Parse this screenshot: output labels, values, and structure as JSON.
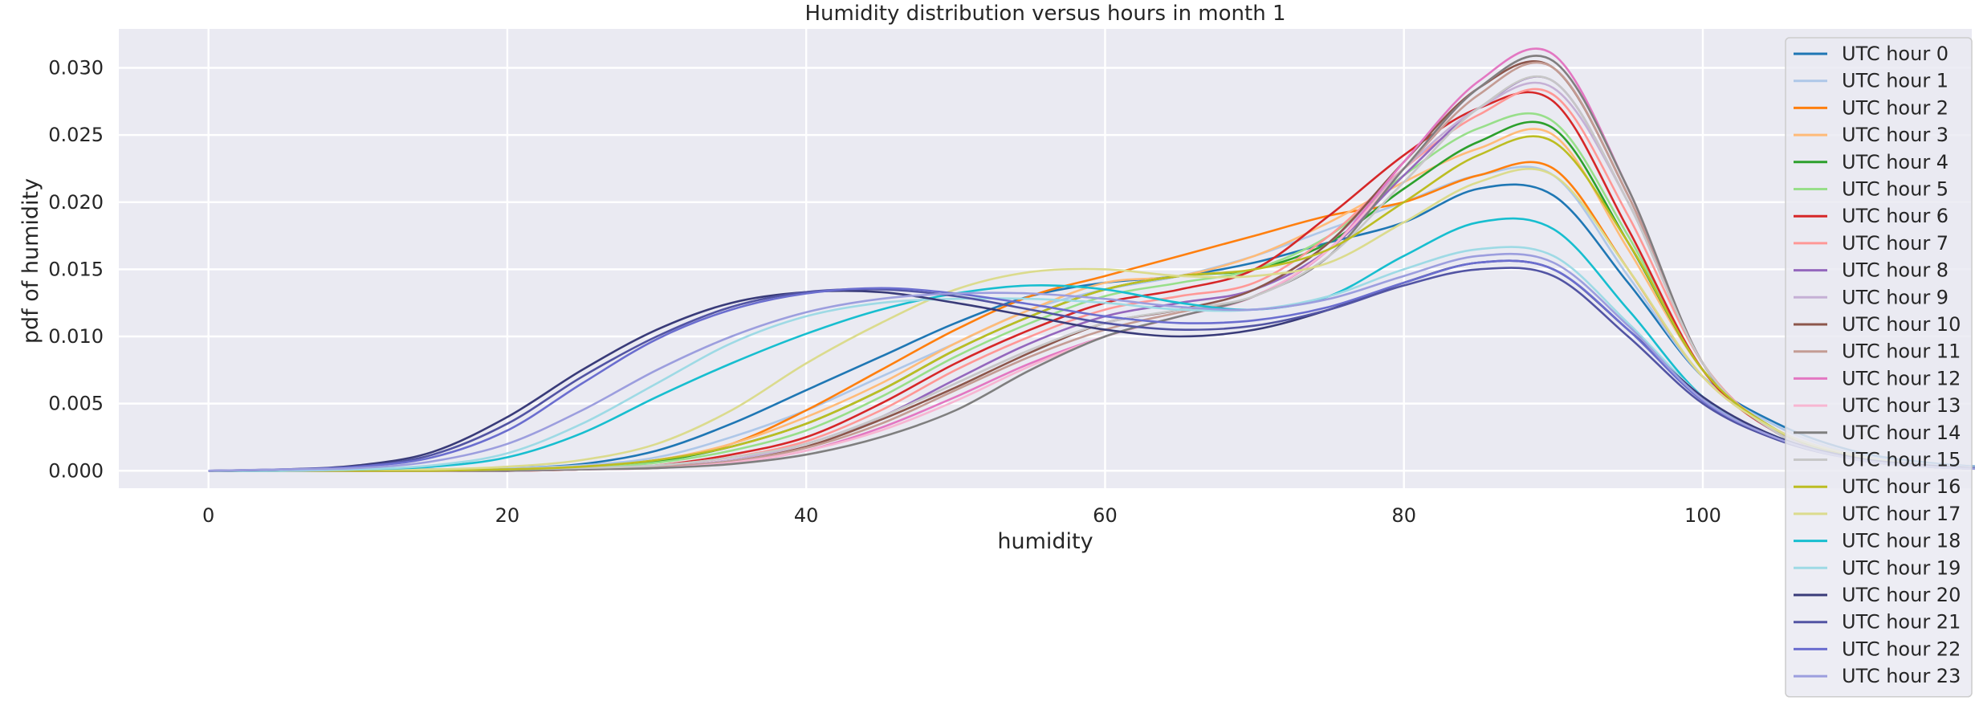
{
  "chart_data": {
    "type": "line",
    "title": "Humidity distribution versus hours in month 1",
    "xlabel": "humidity",
    "ylabel": "pdf of humidity",
    "xlim": [
      -6,
      118
    ],
    "ylim": [
      -0.0013,
      0.0329
    ],
    "x_ticks": [
      0,
      20,
      40,
      60,
      80,
      100
    ],
    "y_ticks": [
      0.0,
      0.005,
      0.01,
      0.015,
      0.02,
      0.025,
      0.03
    ],
    "x_tick_labels": [
      "0",
      "20",
      "40",
      "60",
      "80",
      "100"
    ],
    "y_tick_labels": [
      "0.000",
      "0.005",
      "0.010",
      "0.015",
      "0.020",
      "0.025",
      "0.030"
    ],
    "grid": true,
    "legend_position": "right",
    "background_color": "#eaeaf2",
    "x": [
      0,
      5,
      10,
      15,
      20,
      25,
      30,
      35,
      40,
      45,
      50,
      55,
      60,
      65,
      70,
      75,
      80,
      85,
      90,
      95,
      100,
      105,
      110,
      115,
      120
    ],
    "series": [
      {
        "name": "UTC hour 0",
        "color": "#1f77b4",
        "values": [
          0,
          0,
          0.0001,
          0.0001,
          0.0002,
          0.0005,
          0.0015,
          0.0035,
          0.006,
          0.0085,
          0.011,
          0.013,
          0.014,
          0.0145,
          0.0155,
          0.017,
          0.0185,
          0.021,
          0.0205,
          0.014,
          0.007,
          0.0035,
          0.0015,
          0.0006,
          0.0002
        ]
      },
      {
        "name": "UTC hour 1",
        "color": "#aec7e8",
        "values": [
          0,
          0,
          0,
          0.0001,
          0.0002,
          0.0004,
          0.001,
          0.0025,
          0.0045,
          0.007,
          0.0095,
          0.012,
          0.0135,
          0.0145,
          0.016,
          0.018,
          0.02,
          0.022,
          0.022,
          0.0145,
          0.007,
          0.0033,
          0.0013,
          0.0005,
          0.0002
        ]
      },
      {
        "name": "UTC hour 2",
        "color": "#ff7f0e",
        "values": [
          0,
          0,
          0,
          0,
          0.0001,
          0.0003,
          0.0008,
          0.002,
          0.0045,
          0.0075,
          0.0105,
          0.013,
          0.0145,
          0.016,
          0.0175,
          0.019,
          0.02,
          0.022,
          0.0225,
          0.015,
          0.007,
          0.003,
          0.0012,
          0.0004,
          0.0001
        ]
      },
      {
        "name": "UTC hour 3",
        "color": "#ffbb78",
        "values": [
          0,
          0,
          0,
          0,
          0.0001,
          0.0003,
          0.0008,
          0.002,
          0.004,
          0.0065,
          0.0095,
          0.012,
          0.014,
          0.0145,
          0.016,
          0.0185,
          0.0215,
          0.024,
          0.025,
          0.0165,
          0.0075,
          0.003,
          0.0011,
          0.0004,
          0.0001
        ]
      },
      {
        "name": "UTC hour 4",
        "color": "#2ca02c",
        "values": [
          0,
          0,
          0,
          0,
          0.0001,
          0.0002,
          0.0007,
          0.0018,
          0.0035,
          0.006,
          0.009,
          0.0115,
          0.0135,
          0.0145,
          0.015,
          0.017,
          0.021,
          0.0245,
          0.0255,
          0.017,
          0.0075,
          0.003,
          0.0011,
          0.0004,
          0.0001
        ]
      },
      {
        "name": "UTC hour 5",
        "color": "#98df8a",
        "values": [
          0,
          0,
          0,
          0,
          0.0001,
          0.0002,
          0.0006,
          0.0015,
          0.003,
          0.0055,
          0.0085,
          0.011,
          0.013,
          0.014,
          0.015,
          0.0175,
          0.022,
          0.0255,
          0.026,
          0.0175,
          0.0075,
          0.003,
          0.001,
          0.0003,
          0.0001
        ]
      },
      {
        "name": "UTC hour 6",
        "color": "#d62728",
        "values": [
          0,
          0,
          0,
          0,
          0,
          0.0001,
          0.0004,
          0.0012,
          0.0025,
          0.005,
          0.008,
          0.0105,
          0.0125,
          0.0135,
          0.015,
          0.019,
          0.0235,
          0.027,
          0.0275,
          0.018,
          0.0075,
          0.0028,
          0.0009,
          0.0003,
          0.0001
        ]
      },
      {
        "name": "UTC hour 7",
        "color": "#ff9896",
        "values": [
          0,
          0,
          0,
          0,
          0,
          0.0001,
          0.0004,
          0.001,
          0.0022,
          0.0045,
          0.0075,
          0.01,
          0.012,
          0.013,
          0.014,
          0.0175,
          0.0225,
          0.0265,
          0.028,
          0.019,
          0.008,
          0.0028,
          0.0009,
          0.0003,
          0.0001
        ]
      },
      {
        "name": "UTC hour 8",
        "color": "#9467bd",
        "values": [
          0,
          0,
          0,
          0,
          0,
          0.0001,
          0.0003,
          0.0008,
          0.002,
          0.004,
          0.0068,
          0.0095,
          0.0115,
          0.0125,
          0.0135,
          0.0165,
          0.022,
          0.027,
          0.029,
          0.02,
          0.008,
          0.0028,
          0.0009,
          0.0003,
          0.0001
        ]
      },
      {
        "name": "UTC hour 9",
        "color": "#c5b0d5",
        "values": [
          0,
          0,
          0,
          0,
          0,
          0.0001,
          0.0003,
          0.0008,
          0.002,
          0.004,
          0.0065,
          0.009,
          0.011,
          0.012,
          0.0135,
          0.017,
          0.0225,
          0.027,
          0.0285,
          0.02,
          0.008,
          0.0028,
          0.0009,
          0.0003,
          0.0001
        ]
      },
      {
        "name": "UTC hour 10",
        "color": "#8c564b",
        "values": [
          0,
          0,
          0,
          0,
          0,
          0.0001,
          0.0003,
          0.0007,
          0.0018,
          0.0038,
          0.0062,
          0.0088,
          0.011,
          0.012,
          0.0135,
          0.017,
          0.023,
          0.0285,
          0.03,
          0.0205,
          0.008,
          0.0028,
          0.0009,
          0.0003,
          0.0001
        ]
      },
      {
        "name": "UTC hour 11",
        "color": "#c49c94",
        "values": [
          0,
          0,
          0,
          0,
          0,
          0.0001,
          0.0003,
          0.0007,
          0.0017,
          0.0035,
          0.006,
          0.0085,
          0.0105,
          0.0118,
          0.013,
          0.0165,
          0.0225,
          0.028,
          0.03,
          0.0205,
          0.008,
          0.0028,
          0.0009,
          0.0003,
          0.0001
        ]
      },
      {
        "name": "UTC hour 12",
        "color": "#e377c2",
        "values": [
          0,
          0,
          0,
          0,
          0,
          0.0001,
          0.0002,
          0.0006,
          0.0015,
          0.0032,
          0.0055,
          0.008,
          0.01,
          0.0115,
          0.013,
          0.0165,
          0.023,
          0.029,
          0.031,
          0.021,
          0.008,
          0.0028,
          0.0009,
          0.0003,
          0.0001
        ]
      },
      {
        "name": "UTC hour 13",
        "color": "#f7b6d2",
        "values": [
          0,
          0,
          0,
          0,
          0,
          0.0001,
          0.0002,
          0.0006,
          0.0015,
          0.003,
          0.0052,
          0.0078,
          0.01,
          0.0115,
          0.013,
          0.0165,
          0.0225,
          0.0285,
          0.0305,
          0.021,
          0.008,
          0.0028,
          0.0009,
          0.0003,
          0.0001
        ]
      },
      {
        "name": "UTC hour 14",
        "color": "#7f7f7f",
        "values": [
          0,
          0,
          0,
          0,
          0,
          0.0001,
          0.0002,
          0.0005,
          0.0012,
          0.0025,
          0.0045,
          0.0075,
          0.01,
          0.0115,
          0.013,
          0.016,
          0.0225,
          0.0285,
          0.0305,
          0.021,
          0.008,
          0.0028,
          0.0009,
          0.0003,
          0.0001
        ]
      },
      {
        "name": "UTC hour 15",
        "color": "#c7c7c7",
        "values": [
          0,
          0,
          0,
          0,
          0.0001,
          0.0002,
          0.0004,
          0.001,
          0.002,
          0.004,
          0.0065,
          0.009,
          0.011,
          0.012,
          0.013,
          0.016,
          0.0215,
          0.027,
          0.029,
          0.02,
          0.008,
          0.0028,
          0.0009,
          0.0003,
          0.0001
        ]
      },
      {
        "name": "UTC hour 16",
        "color": "#bcbd22",
        "values": [
          0,
          0,
          0,
          0,
          0.0001,
          0.0003,
          0.0008,
          0.0018,
          0.0035,
          0.006,
          0.009,
          0.0115,
          0.0135,
          0.0145,
          0.015,
          0.0165,
          0.02,
          0.0235,
          0.0245,
          0.017,
          0.0075,
          0.003,
          0.0011,
          0.0004,
          0.0001
        ]
      },
      {
        "name": "UTC hour 17",
        "color": "#dbdb8d",
        "values": [
          0,
          0,
          0.0001,
          0.0001,
          0.0003,
          0.0008,
          0.002,
          0.0045,
          0.008,
          0.011,
          0.0135,
          0.0148,
          0.015,
          0.0145,
          0.0145,
          0.0155,
          0.0185,
          0.0215,
          0.022,
          0.015,
          0.007,
          0.003,
          0.0012,
          0.0004,
          0.0001
        ]
      },
      {
        "name": "UTC hour 18",
        "color": "#17becf",
        "values": [
          0,
          0,
          0.0001,
          0.0003,
          0.001,
          0.0028,
          0.0055,
          0.008,
          0.0102,
          0.012,
          0.0132,
          0.0138,
          0.0135,
          0.0125,
          0.012,
          0.013,
          0.016,
          0.0185,
          0.018,
          0.012,
          0.0055,
          0.0025,
          0.001,
          0.0004,
          0.0001
        ]
      },
      {
        "name": "UTC hour 19",
        "color": "#9edae5",
        "values": [
          0,
          0,
          0.0001,
          0.0004,
          0.0013,
          0.0035,
          0.0065,
          0.0095,
          0.0115,
          0.0125,
          0.0128,
          0.0128,
          0.0125,
          0.012,
          0.012,
          0.013,
          0.015,
          0.0165,
          0.016,
          0.011,
          0.0055,
          0.0025,
          0.001,
          0.0004,
          0.0001
        ]
      },
      {
        "name": "UTC hour 20",
        "color": "#393b79",
        "values": [
          0,
          0.0001,
          0.0004,
          0.0014,
          0.004,
          0.0075,
          0.0105,
          0.0125,
          0.0133,
          0.0133,
          0.0125,
          0.0115,
          0.0105,
          0.01,
          0.0105,
          0.012,
          0.014,
          0.0155,
          0.015,
          0.0105,
          0.0055,
          0.0025,
          0.001,
          0.0004,
          0.0001
        ]
      },
      {
        "name": "UTC hour 21",
        "color": "#5254a3",
        "values": [
          0,
          0.0001,
          0.0003,
          0.0012,
          0.0035,
          0.007,
          0.01,
          0.0122,
          0.0133,
          0.0135,
          0.013,
          0.012,
          0.011,
          0.0105,
          0.0108,
          0.012,
          0.0138,
          0.015,
          0.0145,
          0.01,
          0.005,
          0.0023,
          0.0009,
          0.0003,
          0.0001
        ]
      },
      {
        "name": "UTC hour 22",
        "color": "#6b6ecf",
        "values": [
          0,
          0.0001,
          0.0003,
          0.001,
          0.003,
          0.0065,
          0.0098,
          0.012,
          0.0132,
          0.0136,
          0.0132,
          0.0124,
          0.0115,
          0.011,
          0.0112,
          0.0122,
          0.014,
          0.0155,
          0.015,
          0.0105,
          0.0052,
          0.0024,
          0.0009,
          0.0003,
          0.0001
        ]
      },
      {
        "name": "UTC hour 23",
        "color": "#9c9ede",
        "values": [
          0,
          0.0001,
          0.0002,
          0.0007,
          0.002,
          0.0045,
          0.0075,
          0.01,
          0.0118,
          0.0128,
          0.0132,
          0.0132,
          0.0128,
          0.0122,
          0.012,
          0.0128,
          0.0145,
          0.016,
          0.0155,
          0.0108,
          0.0053,
          0.0024,
          0.0009,
          0.0003,
          0.0001
        ]
      }
    ]
  }
}
